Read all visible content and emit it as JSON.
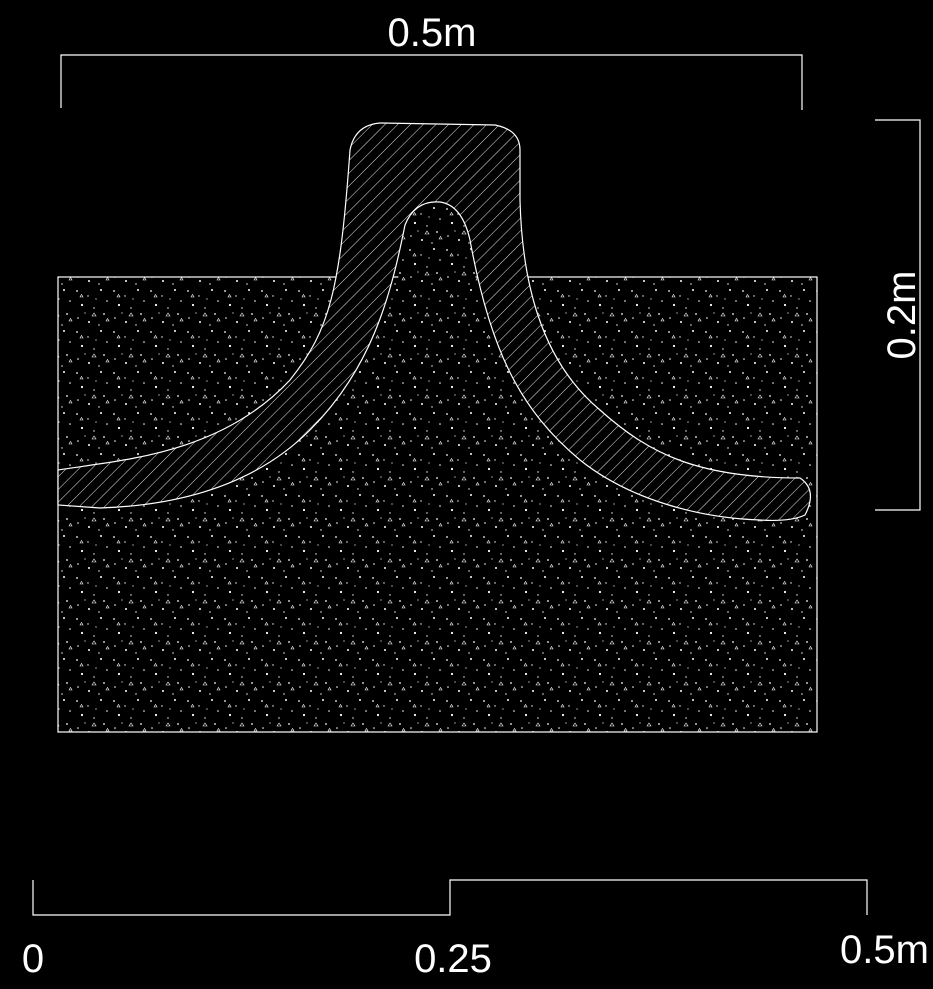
{
  "dimensions": {
    "width_label": "0.5m",
    "height_label": "0.2m"
  },
  "scale_bar": {
    "labels": [
      "0",
      "0.25",
      "0.5m"
    ]
  }
}
